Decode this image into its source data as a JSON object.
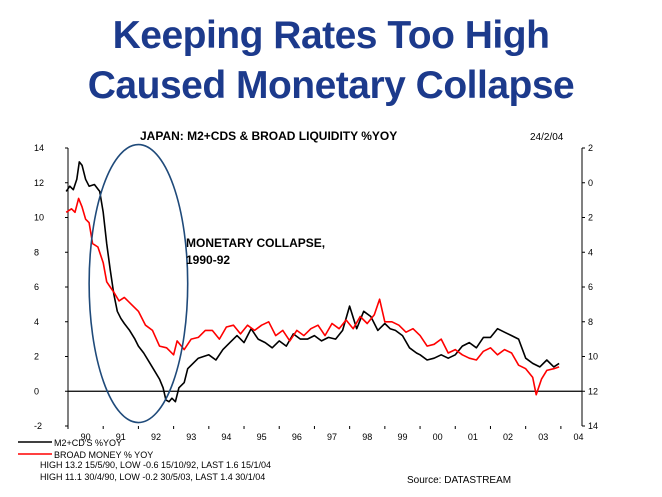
{
  "slide": {
    "title_line1": "Keeping Rates Too High",
    "title_line2": "Caused Monetary Collapse"
  },
  "colors": {
    "title": "#1c3a8c",
    "series1": "#000000",
    "series2": "#ff0000",
    "ellipse": "#1f4a7a"
  },
  "chart_data": {
    "type": "line",
    "title": "JAPAN: M2+CDS & BROAD LIQUIDITY %YOY",
    "date_label": "24/2/04",
    "ylim": [
      -2,
      14
    ],
    "yticks": [
      -2,
      0,
      2,
      4,
      6,
      8,
      10,
      12,
      14
    ],
    "right_yticks": [
      "14",
      "12",
      "10",
      "8",
      "6",
      "4",
      "2",
      "0",
      "2"
    ],
    "xlim": [
      1990,
      2004.6
    ],
    "xtick_labels": [
      "90",
      "91",
      "92",
      "93",
      "94",
      "95",
      "96",
      "97",
      "98",
      "99",
      "00",
      "01",
      "02",
      "03",
      "04"
    ],
    "zero_line": 0,
    "annotation": {
      "line1": "MONETARY COLLAPSE,",
      "line2": "1990-92"
    },
    "highlight_ellipse": {
      "x_center": 1992.0,
      "y_center": 6.2,
      "x_radius": 1.4,
      "y_radius": 8.0
    },
    "series": [
      {
        "name": "M2+CD'S %YOY",
        "color": "#000000",
        "points": [
          [
            1989.95,
            11.5
          ],
          [
            1990.05,
            11.8
          ],
          [
            1990.15,
            11.6
          ],
          [
            1990.25,
            12.2
          ],
          [
            1990.32,
            13.2
          ],
          [
            1990.4,
            13.0
          ],
          [
            1990.5,
            12.2
          ],
          [
            1990.6,
            11.8
          ],
          [
            1990.75,
            11.9
          ],
          [
            1990.9,
            11.5
          ],
          [
            1991.0,
            10.3
          ],
          [
            1991.1,
            8.5
          ],
          [
            1991.2,
            7.0
          ],
          [
            1991.3,
            5.6
          ],
          [
            1991.4,
            4.6
          ],
          [
            1991.5,
            4.2
          ],
          [
            1991.6,
            3.9
          ],
          [
            1991.75,
            3.5
          ],
          [
            1991.9,
            3.0
          ],
          [
            1992.0,
            2.6
          ],
          [
            1992.15,
            2.2
          ],
          [
            1992.3,
            1.7
          ],
          [
            1992.45,
            1.2
          ],
          [
            1992.6,
            0.7
          ],
          [
            1992.7,
            0.2
          ],
          [
            1992.78,
            -0.5
          ],
          [
            1992.87,
            -0.6
          ],
          [
            1992.95,
            -0.4
          ],
          [
            1993.05,
            -0.6
          ],
          [
            1993.15,
            0.2
          ],
          [
            1993.3,
            0.5
          ],
          [
            1993.4,
            1.3
          ],
          [
            1993.55,
            1.6
          ],
          [
            1993.7,
            1.9
          ],
          [
            1993.85,
            2.0
          ],
          [
            1994.0,
            2.1
          ],
          [
            1994.2,
            1.8
          ],
          [
            1994.4,
            2.4
          ],
          [
            1994.6,
            2.8
          ],
          [
            1994.8,
            3.2
          ],
          [
            1995.0,
            2.8
          ],
          [
            1995.2,
            3.6
          ],
          [
            1995.4,
            3.0
          ],
          [
            1995.6,
            2.8
          ],
          [
            1995.8,
            2.5
          ],
          [
            1996.0,
            2.9
          ],
          [
            1996.2,
            2.6
          ],
          [
            1996.4,
            3.3
          ],
          [
            1996.6,
            3.0
          ],
          [
            1996.8,
            3.0
          ],
          [
            1997.0,
            3.2
          ],
          [
            1997.2,
            2.9
          ],
          [
            1997.4,
            3.1
          ],
          [
            1997.6,
            3.0
          ],
          [
            1997.8,
            3.5
          ],
          [
            1998.0,
            4.9
          ],
          [
            1998.2,
            3.6
          ],
          [
            1998.4,
            4.6
          ],
          [
            1998.6,
            4.3
          ],
          [
            1998.8,
            3.5
          ],
          [
            1999.0,
            3.9
          ],
          [
            1999.15,
            3.6
          ],
          [
            1999.3,
            3.5
          ],
          [
            1999.5,
            3.2
          ],
          [
            1999.7,
            2.5
          ],
          [
            1999.9,
            2.2
          ],
          [
            2000.0,
            2.1
          ],
          [
            2000.2,
            1.8
          ],
          [
            2000.4,
            1.9
          ],
          [
            2000.6,
            2.1
          ],
          [
            2000.8,
            1.9
          ],
          [
            2001.0,
            2.1
          ],
          [
            2001.2,
            2.6
          ],
          [
            2001.4,
            2.8
          ],
          [
            2001.6,
            2.5
          ],
          [
            2001.8,
            3.1
          ],
          [
            2002.0,
            3.1
          ],
          [
            2002.2,
            3.6
          ],
          [
            2002.4,
            3.4
          ],
          [
            2002.6,
            3.2
          ],
          [
            2002.8,
            3.0
          ],
          [
            2003.0,
            1.9
          ],
          [
            2003.2,
            1.6
          ],
          [
            2003.4,
            1.4
          ],
          [
            2003.6,
            1.8
          ],
          [
            2003.8,
            1.4
          ],
          [
            2003.95,
            1.6
          ]
        ]
      },
      {
        "name": "BROAD MONEY % YOY",
        "color": "#ff0000",
        "points": [
          [
            1989.95,
            10.3
          ],
          [
            1990.1,
            10.5
          ],
          [
            1990.2,
            10.3
          ],
          [
            1990.3,
            11.1
          ],
          [
            1990.4,
            10.6
          ],
          [
            1990.5,
            9.9
          ],
          [
            1990.6,
            9.7
          ],
          [
            1990.7,
            8.5
          ],
          [
            1990.85,
            8.3
          ],
          [
            1991.0,
            7.4
          ],
          [
            1991.1,
            6.3
          ],
          [
            1991.2,
            6.0
          ],
          [
            1991.3,
            5.7
          ],
          [
            1991.45,
            5.2
          ],
          [
            1991.6,
            5.4
          ],
          [
            1991.8,
            5.0
          ],
          [
            1992.0,
            4.6
          ],
          [
            1992.2,
            3.8
          ],
          [
            1992.4,
            3.5
          ],
          [
            1992.6,
            2.6
          ],
          [
            1992.8,
            2.5
          ],
          [
            1993.0,
            2.1
          ],
          [
            1993.1,
            2.9
          ],
          [
            1993.3,
            2.4
          ],
          [
            1993.5,
            3.0
          ],
          [
            1993.7,
            3.1
          ],
          [
            1993.9,
            3.5
          ],
          [
            1994.1,
            3.5
          ],
          [
            1994.3,
            3.0
          ],
          [
            1994.5,
            3.7
          ],
          [
            1994.7,
            3.8
          ],
          [
            1994.9,
            3.3
          ],
          [
            1995.1,
            3.8
          ],
          [
            1995.3,
            3.5
          ],
          [
            1995.5,
            3.8
          ],
          [
            1995.7,
            4.0
          ],
          [
            1995.9,
            3.2
          ],
          [
            1996.1,
            3.5
          ],
          [
            1996.3,
            2.9
          ],
          [
            1996.5,
            3.5
          ],
          [
            1996.7,
            3.2
          ],
          [
            1996.9,
            3.6
          ],
          [
            1997.1,
            3.8
          ],
          [
            1997.3,
            3.2
          ],
          [
            1997.5,
            3.9
          ],
          [
            1997.7,
            3.6
          ],
          [
            1997.9,
            4.1
          ],
          [
            1998.1,
            3.6
          ],
          [
            1998.3,
            4.3
          ],
          [
            1998.5,
            3.9
          ],
          [
            1998.7,
            4.4
          ],
          [
            1998.85,
            5.3
          ],
          [
            1999.0,
            4.0
          ],
          [
            1999.2,
            4.0
          ],
          [
            1999.4,
            3.8
          ],
          [
            1999.6,
            3.4
          ],
          [
            1999.8,
            3.6
          ],
          [
            2000.0,
            3.2
          ],
          [
            2000.2,
            2.6
          ],
          [
            2000.4,
            2.7
          ],
          [
            2000.6,
            3.0
          ],
          [
            2000.8,
            2.2
          ],
          [
            2001.0,
            2.4
          ],
          [
            2001.2,
            2.1
          ],
          [
            2001.4,
            1.9
          ],
          [
            2001.6,
            1.8
          ],
          [
            2001.8,
            2.3
          ],
          [
            2002.0,
            2.5
          ],
          [
            2002.2,
            2.1
          ],
          [
            2002.4,
            2.4
          ],
          [
            2002.6,
            2.2
          ],
          [
            2002.8,
            1.5
          ],
          [
            2003.0,
            1.3
          ],
          [
            2003.2,
            0.8
          ],
          [
            2003.3,
            -0.2
          ],
          [
            2003.45,
            0.7
          ],
          [
            2003.6,
            1.2
          ],
          [
            2003.8,
            1.3
          ],
          [
            2003.95,
            1.4
          ]
        ]
      }
    ],
    "legend": {
      "position": "bottom-left"
    },
    "stats_lines": [
      "HIGH 13.2 15/5/90, LOW -0.6 15/10/92, LAST 1.6 15/1/04",
      "HIGH 11.1 30/4/90, LOW -0.2 30/5/03, LAST 1.4 30/1/04"
    ],
    "source": "Source: DATASTREAM"
  }
}
